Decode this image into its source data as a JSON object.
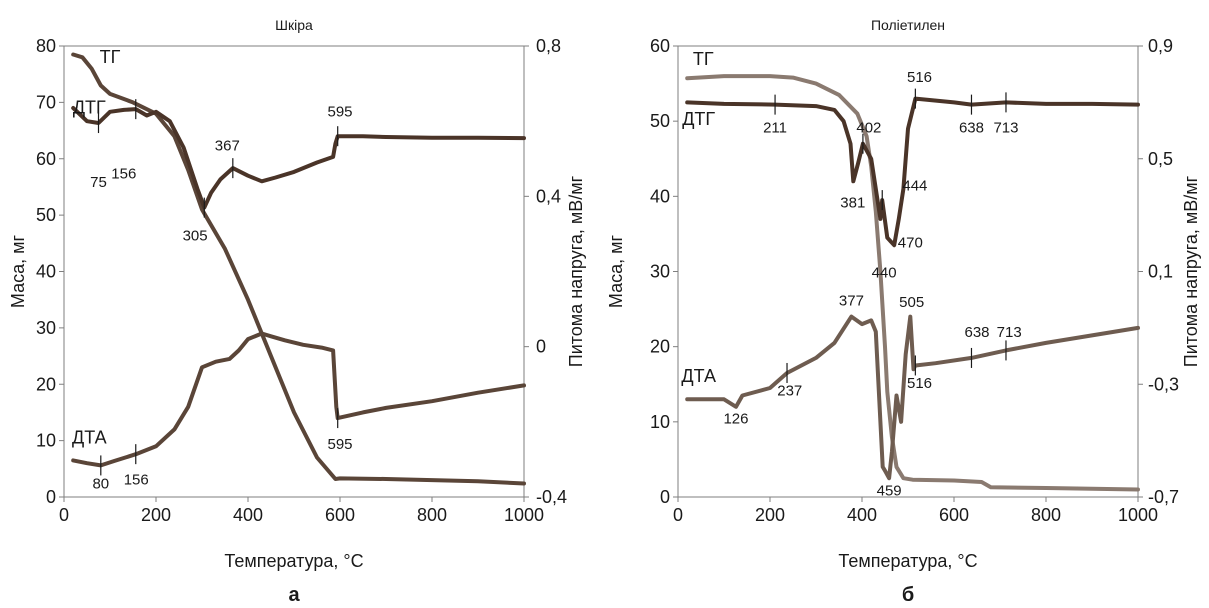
{
  "chart_data": [
    {
      "type": "line",
      "title": "Шкіра",
      "panel_label": "а",
      "xlabel": "Температура, °C",
      "ylabel": "Маса, мг",
      "y2label": "Питома напруга, мВ/мг",
      "xlim": [
        0,
        1000
      ],
      "ylim": [
        0,
        80
      ],
      "y2lim": [
        -0.4,
        0.8
      ],
      "x_ticks": [
        "0",
        "200",
        "400",
        "600",
        "800",
        "1000"
      ],
      "y_ticks": [
        "0",
        "10",
        "20",
        "30",
        "40",
        "50",
        "60",
        "70",
        "80"
      ],
      "y2_ticks": [
        "-0,4",
        "0",
        "0,4",
        "0,8"
      ],
      "grid": false,
      "series": [
        {
          "name": "ТГ",
          "axis": "left",
          "color": "#5a4538",
          "x": [
            20,
            40,
            60,
            80,
            100,
            150,
            200,
            240,
            270,
            300,
            350,
            400,
            450,
            500,
            550,
            590,
            600,
            700,
            800,
            900,
            1000
          ],
          "y": [
            78.5,
            78,
            76,
            73,
            71.5,
            70,
            68,
            64,
            58,
            51,
            44,
            35,
            25,
            15,
            7,
            3.2,
            3.3,
            3.2,
            3.0,
            2.8,
            2.4
          ]
        },
        {
          "name": "ДТГ",
          "axis": "right",
          "color": "#4a3428",
          "x": [
            20,
            50,
            75,
            100,
            130,
            156,
            180,
            200,
            230,
            260,
            290,
            305,
            320,
            340,
            367,
            400,
            430,
            460,
            500,
            550,
            585,
            590,
            595,
            650,
            700,
            800,
            900,
            1000
          ],
          "y": [
            0.635,
            0.6,
            0.595,
            0.625,
            0.63,
            0.632,
            0.615,
            0.625,
            0.6,
            0.53,
            0.42,
            0.37,
            0.41,
            0.445,
            0.475,
            0.455,
            0.44,
            0.45,
            0.465,
            0.49,
            0.505,
            0.54,
            0.56,
            0.56,
            0.558,
            0.556,
            0.556,
            0.555
          ]
        },
        {
          "name": "ДТА",
          "axis": "left",
          "color": "#5a4538",
          "x": [
            20,
            50,
            80,
            110,
            156,
            200,
            240,
            270,
            300,
            330,
            360,
            380,
            400,
            430,
            450,
            480,
            520,
            560,
            585,
            592,
            595,
            650,
            700,
            800,
            900,
            1000
          ],
          "y": [
            6.5,
            6,
            5.6,
            6.4,
            7.6,
            9,
            12,
            16,
            23,
            24,
            24.5,
            26,
            28,
            29,
            28.5,
            27.8,
            27,
            26.5,
            26,
            16,
            14,
            15,
            15.8,
            17,
            18.5,
            19.8
          ]
        }
      ],
      "annotations": [
        {
          "text": "ТГ",
          "x": 100,
          "y": 77
        },
        {
          "text": "ДТГ",
          "x": 55,
          "y": 68
        },
        {
          "text": "75",
          "x": 75,
          "y": 55
        },
        {
          "text": "156",
          "x": 130,
          "y": 56.5
        },
        {
          "text": "305",
          "x": 285,
          "y": 45.5
        },
        {
          "text": "367",
          "x": 355,
          "y": 61.5
        },
        {
          "text": "595",
          "x": 600,
          "y": 67.5
        },
        {
          "text": "595",
          "x": 600,
          "y": 8.5
        },
        {
          "text": "ДТА",
          "x": 55,
          "y": 9.5
        },
        {
          "text": "80",
          "x": 80,
          "y": 1.5
        },
        {
          "text": "156",
          "x": 157,
          "y": 2.2
        }
      ]
    },
    {
      "type": "line",
      "title": "Поліетилен",
      "panel_label": "б",
      "xlabel": "Температура, °C",
      "ylabel": "Маса, мг",
      "y2label": "Питома напруга, мВ/мг",
      "xlim": [
        0,
        1000
      ],
      "ylim": [
        0,
        60
      ],
      "y2lim": [
        -0.7,
        0.9
      ],
      "x_ticks": [
        "0",
        "200",
        "400",
        "600",
        "800",
        "1000"
      ],
      "y_ticks": [
        "0",
        "10",
        "20",
        "30",
        "40",
        "50",
        "60"
      ],
      "y2_ticks": [
        "-0,7",
        "-0,3",
        "0,1",
        "0,5",
        "0,9"
      ],
      "grid": false,
      "series": [
        {
          "name": "ТГ",
          "axis": "left",
          "color": "#8a7a70",
          "x": [
            20,
            100,
            200,
            250,
            300,
            350,
            390,
            410,
            420,
            430,
            440,
            450,
            455,
            465,
            475,
            490,
            510,
            600,
            660,
            680,
            800,
            900,
            1000
          ],
          "y": [
            55.7,
            56,
            56,
            55.8,
            55,
            53.5,
            51,
            48,
            44,
            38,
            30,
            20,
            14,
            8,
            4,
            2.5,
            2.3,
            2.2,
            2,
            1.3,
            1.2,
            1.1,
            1.0
          ]
        },
        {
          "name": "ДТГ",
          "axis": "left",
          "color": "#4a3428",
          "x": [
            20,
            100,
            211,
            300,
            340,
            360,
            375,
            381,
            392,
            402,
            420,
            440,
            444,
            455,
            470,
            480,
            490,
            500,
            516,
            600,
            638,
            713,
            800,
            900,
            1000
          ],
          "y": [
            52.5,
            52.3,
            52.2,
            52,
            51.5,
            50,
            47,
            42,
            44.5,
            47,
            45,
            37,
            39.5,
            34.5,
            33.5,
            37,
            41,
            49,
            53,
            52.5,
            52.2,
            52.5,
            52.3,
            52.3,
            52.2
          ]
        },
        {
          "name": "ДТА",
          "axis": "left",
          "color": "#6e5c50",
          "x": [
            20,
            100,
            126,
            140,
            200,
            237,
            300,
            340,
            377,
            400,
            420,
            430,
            440,
            445,
            450,
            459,
            465,
            475,
            485,
            495,
            505,
            512,
            516,
            560,
            638,
            713,
            800,
            900,
            1000
          ],
          "y": [
            13,
            13,
            12,
            13.5,
            14.5,
            16.5,
            18.5,
            20.5,
            24,
            23,
            23.5,
            22,
            10,
            4,
            3.5,
            2.5,
            6,
            13.5,
            10,
            19,
            24,
            17,
            17.5,
            17.8,
            18.5,
            19.5,
            20.5,
            21.5,
            22.5
          ]
        }
      ],
      "annotations": [
        {
          "text": "ТГ",
          "x": 55,
          "y": 57.5
        },
        {
          "text": "ДТГ",
          "x": 45,
          "y": 49.5
        },
        {
          "text": "211",
          "x": 211,
          "y": 48.5
        },
        {
          "text": "402",
          "x": 415,
          "y": 48.5
        },
        {
          "text": "516",
          "x": 525,
          "y": 55.2
        },
        {
          "text": "638",
          "x": 638,
          "y": 48.5
        },
        {
          "text": "713",
          "x": 713,
          "y": 48.5
        },
        {
          "text": "444",
          "x": 515,
          "y": 40.8
        },
        {
          "text": "381",
          "x": 380,
          "y": 38.5
        },
        {
          "text": "470",
          "x": 505,
          "y": 33.2
        },
        {
          "text": "440",
          "x": 448,
          "y": 29.2
        },
        {
          "text": "377",
          "x": 377,
          "y": 25.5
        },
        {
          "text": "505",
          "x": 508,
          "y": 25.3
        },
        {
          "text": "638",
          "x": 650,
          "y": 21.3
        },
        {
          "text": "713",
          "x": 720,
          "y": 21.3
        },
        {
          "text": "ДТА",
          "x": 45,
          "y": 15.3
        },
        {
          "text": "237",
          "x": 243,
          "y": 13.5
        },
        {
          "text": "516",
          "x": 525,
          "y": 14.5
        },
        {
          "text": "126",
          "x": 126,
          "y": 9.8
        },
        {
          "text": "459",
          "x": 459,
          "y": 0.2
        }
      ]
    }
  ]
}
